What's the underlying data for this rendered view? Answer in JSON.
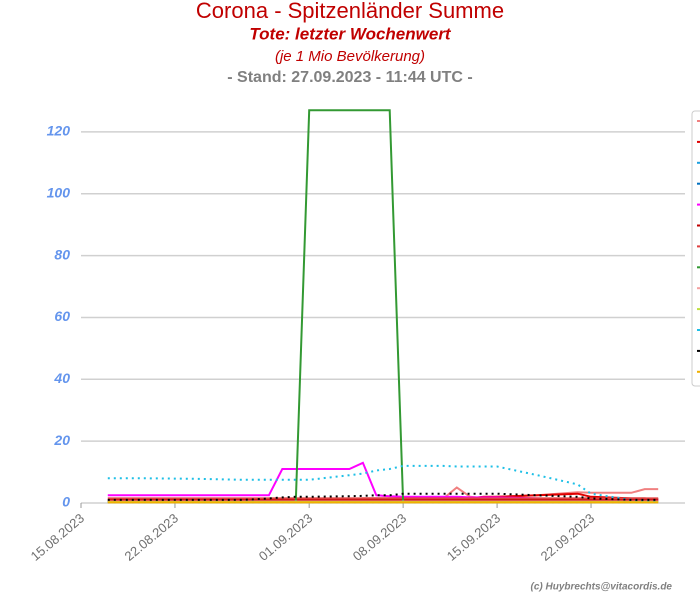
{
  "chart_data": {
    "type": "line",
    "title": "Corona - Spitzenländer Summe",
    "subtitle": "Tote: letzter Wochenwert",
    "note": "(je 1 Mio Bevölkerung)",
    "stand": "- Stand: 27.09.2023 - 11:44 UTC -",
    "credit": "(c) Huybrechts@vitacordis.de",
    "x": [
      "17.08.2023",
      "20.08.2023",
      "24.08.2023",
      "27.08.2023",
      "28.08.2023",
      "29.08.2023",
      "30.08.2023",
      "31.08.2023",
      "01.09.2023",
      "04.09.2023",
      "05.09.2023",
      "06.09.2023",
      "07.09.2023",
      "08.09.2023",
      "11.09.2023",
      "12.09.2023",
      "13.09.2023",
      "14.09.2023",
      "15.09.2023",
      "18.09.2023",
      "21.09.2023",
      "22.09.2023",
      "25.09.2023",
      "26.09.2023",
      "27.09.2023"
    ],
    "xlim": [
      "15.08.2023",
      "29.09.2023"
    ],
    "xticks": [
      "15.08.2023",
      "22.08.2023",
      "01.09.2023",
      "08.09.2023",
      "15.09.2023",
      "22.09.2023"
    ],
    "ylim": [
      0,
      130
    ],
    "yticks": [
      0,
      20,
      40,
      60,
      80,
      100,
      120
    ],
    "grid": true,
    "series": [
      {
        "color": "#f08080",
        "values": [
          0.5,
          0.5,
          0.5,
          0.5,
          0.5,
          0.5,
          0.8,
          0.8,
          1,
          1,
          1,
          1,
          1,
          1,
          1.5,
          5,
          2,
          1.5,
          2,
          2.5,
          3.5,
          3.3,
          3.3,
          4.5,
          4.5
        ]
      },
      {
        "color": "#e00000",
        "values": [
          0.5,
          0.5,
          0.5,
          0.5,
          0.5,
          0.5,
          0.8,
          1,
          1,
          1.2,
          1.5,
          1.5,
          1.5,
          1.5,
          1.5,
          1.5,
          1.5,
          2,
          2,
          2.5,
          3,
          2,
          1.5,
          1.5,
          1.2
        ]
      },
      {
        "color": "#1ca0e0",
        "values": [
          0.5,
          0.5,
          0.5,
          0.5,
          0.5,
          0.5,
          0.5,
          0.5,
          0.5,
          0.5,
          0.5,
          0.5,
          0.5,
          0.5,
          0.5,
          0.5,
          0.5,
          0.5,
          0.5,
          0.5,
          0.5,
          0.5,
          0.5,
          0.5,
          0.5
        ]
      },
      {
        "color": "#0070c0",
        "linestyle": "dotted",
        "values": [
          0.3,
          0.3,
          0.3,
          0.3,
          0.3,
          0.3,
          0.3,
          0.3,
          0.3,
          0.3,
          0.3,
          0.3,
          0.3,
          0.3,
          0.3,
          0.3,
          0.3,
          0.3,
          0.3,
          0.3,
          0.3,
          0.3,
          0.3,
          0.3,
          0.3
        ]
      },
      {
        "color": "#ff00ff",
        "values": [
          2.5,
          2.5,
          2.5,
          2.5,
          2.5,
          2.5,
          11,
          11,
          11,
          11,
          13,
          2.5,
          2.2,
          2,
          2,
          2,
          1.8,
          1.8,
          1.8,
          1.5,
          1.2,
          1,
          1,
          1,
          1
        ]
      },
      {
        "color": "#c00000",
        "values": [
          1,
          1,
          1,
          1,
          1,
          1,
          1,
          1,
          1,
          1,
          1,
          1,
          1,
          1,
          1,
          1,
          1,
          1,
          1,
          1,
          1,
          1,
          1,
          1,
          1
        ]
      },
      {
        "color": "#e04040",
        "values": [
          1.5,
          1.5,
          1.5,
          1.5,
          1.5,
          1.5,
          1.5,
          1.5,
          1.5,
          1.5,
          1.5,
          1.5,
          1.5,
          1.5,
          1.5,
          1.5,
          1.5,
          1.5,
          1.5,
          1.5,
          1.5,
          1.5,
          1.5,
          1.5,
          1.5
        ]
      },
      {
        "color": "#339933",
        "values": [
          0.5,
          0.5,
          0.5,
          0.5,
          0.5,
          0.5,
          0.5,
          0.5,
          127,
          127,
          127,
          127,
          127,
          0.5,
          0.5,
          0.5,
          0.5,
          0.5,
          0.5,
          0.5,
          0.5,
          0.5,
          0.5,
          0.5,
          0.5
        ]
      },
      {
        "color": "#f4a0a0",
        "values": [
          0.5,
          0.5,
          0.5,
          0.5,
          0.5,
          0.5,
          0.5,
          0.5,
          0.5,
          0.5,
          0.5,
          0.5,
          0.5,
          0.5,
          0.5,
          0.5,
          0.5,
          0.5,
          0.5,
          0.5,
          0.5,
          0.5,
          0.5,
          0.5,
          0.5
        ]
      },
      {
        "color": "#c0e040",
        "values": [
          0.3,
          0.3,
          0.3,
          0.3,
          0.3,
          0.3,
          0.3,
          0.3,
          0.3,
          0.3,
          0.3,
          0.3,
          0.3,
          0.3,
          0.3,
          0.3,
          0.3,
          0.3,
          0.3,
          0.3,
          0.3,
          0.3,
          0.3,
          0.3,
          0.3
        ]
      },
      {
        "color": "#1ebfe6",
        "linestyle": "dotted",
        "values": [
          8,
          8,
          7.8,
          7.5,
          7.5,
          7.5,
          7.5,
          7.5,
          7.5,
          9,
          9.5,
          10.5,
          11,
          12,
          12,
          11.8,
          11.8,
          11.8,
          11.8,
          9,
          6,
          3,
          1,
          0.8,
          0.5
        ]
      },
      {
        "color": "#000000",
        "linestyle": "dotted",
        "values": [
          1,
          1,
          1,
          1,
          1.2,
          1.5,
          1.8,
          2,
          2,
          2.2,
          2.3,
          2.5,
          2.5,
          3,
          3,
          3,
          3,
          3,
          3,
          2.5,
          2,
          1.5,
          1,
          1,
          1
        ]
      },
      {
        "color": "#f0b000",
        "values": [
          0.2,
          0.2,
          0.2,
          0.2,
          0.2,
          0.2,
          0.2,
          0.2,
          0.2,
          0.2,
          0.2,
          0.2,
          0.2,
          0.2,
          0.2,
          0.2,
          0.2,
          0.2,
          0.2,
          0.2,
          0.2,
          0.2,
          0.2,
          0.2,
          0.2
        ]
      }
    ]
  }
}
